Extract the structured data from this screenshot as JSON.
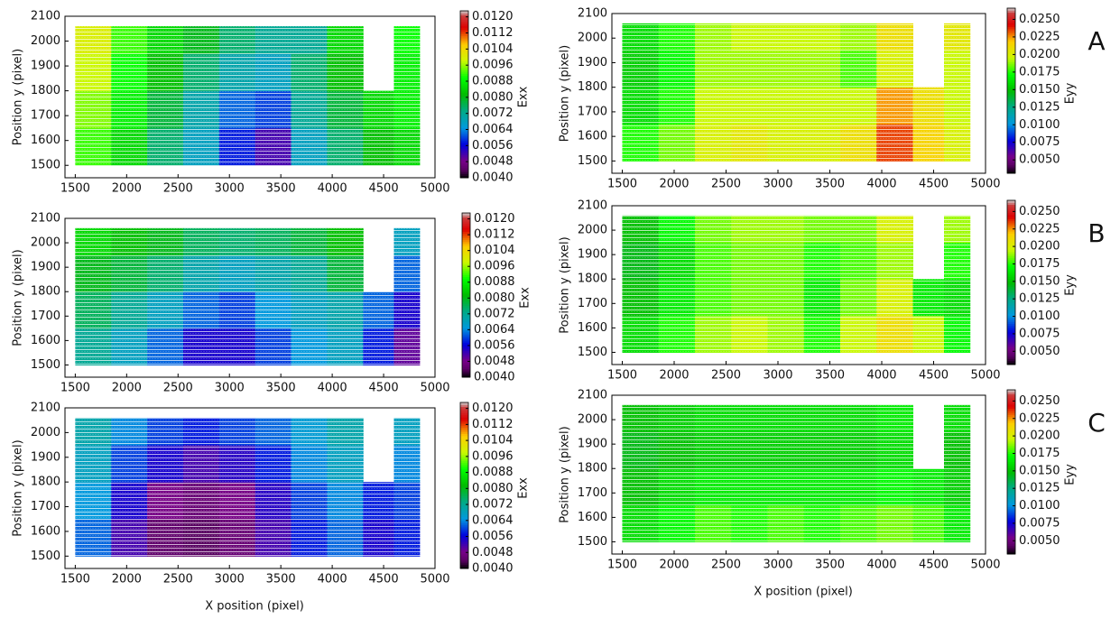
{
  "chart_data": [
    {
      "type": "heatmap",
      "ylabel": "Position y (pixel)",
      "colorbar_label": "Exx",
      "colormap": "nipy_spectral",
      "xlim": [
        1400,
        5000
      ],
      "ylim": [
        1450,
        2100
      ],
      "xticks": [
        1500,
        2000,
        2500,
        3000,
        3500,
        4000,
        4500,
        5000
      ],
      "yticks": [
        1500,
        1600,
        1700,
        1800,
        1900,
        2000,
        2100
      ],
      "xbins": [
        1500,
        1850,
        2200,
        2550,
        2900,
        3250,
        3600,
        3950,
        4300,
        4600,
        4850
      ],
      "ybins": [
        1500,
        1650,
        1800,
        1950,
        2060
      ],
      "values": [
        [
          0.0092,
          0.0085,
          0.0075,
          0.0068,
          0.0058,
          0.0052,
          0.0068,
          0.0075,
          0.0082,
          0.0085
        ],
        [
          0.0095,
          0.0088,
          0.0078,
          0.007,
          0.0062,
          0.006,
          0.0072,
          0.0078,
          0.0085,
          0.0088
        ],
        [
          0.0098,
          0.009,
          0.0082,
          0.0075,
          0.007,
          0.0068,
          0.0075,
          0.0082,
          null,
          0.0088
        ],
        [
          0.01,
          0.0092,
          0.0085,
          0.008,
          0.0075,
          0.0072,
          0.0072,
          0.0085,
          null,
          0.009
        ]
      ],
      "clim": [
        0.004,
        0.0123
      ],
      "cticks": [
        {
          "value": 0.004,
          "label": "0.0040"
        },
        0.0048,
        0.0056,
        0.0064,
        0.0072,
        {
          "value": 0.008,
          "label": "0.0080"
        },
        0.0088,
        0.0096,
        0.0104,
        0.0112,
        {
          "value": 0.012,
          "label": "0.0120"
        }
      ]
    },
    {
      "type": "heatmap",
      "ylabel": "Position y (pixel)",
      "colorbar_label": "Eyy",
      "colormap": "nipy_spectral",
      "panel_label": "A",
      "xlim": [
        1400,
        5000
      ],
      "ylim": [
        1450,
        2100
      ],
      "xticks": [
        1500,
        2000,
        2500,
        3000,
        3500,
        4000,
        4500,
        5000
      ],
      "yticks": [
        1500,
        1600,
        1700,
        1800,
        1900,
        2000,
        2100
      ],
      "xbins": [
        1500,
        1850,
        2200,
        2550,
        2900,
        3250,
        3600,
        3950,
        4300,
        4600,
        4850
      ],
      "ybins": [
        1500,
        1650,
        1800,
        1950,
        2060
      ],
      "values": [
        [
          0.0175,
          0.0185,
          0.02,
          0.0205,
          0.02,
          0.02,
          0.021,
          0.0235,
          0.0215,
          0.02
        ],
        [
          0.016,
          0.0175,
          0.0195,
          0.0195,
          0.0195,
          0.0195,
          0.0195,
          0.0225,
          0.021,
          0.0195
        ],
        [
          0.0155,
          0.017,
          0.019,
          0.019,
          0.019,
          0.019,
          0.018,
          0.02,
          null,
          0.0195
        ],
        [
          0.016,
          0.0175,
          0.019,
          0.0195,
          0.0195,
          0.0195,
          0.019,
          0.021,
          null,
          0.0205
        ]
      ],
      "clim": [
        0.0031,
        0.0266
      ],
      "cticks": [
        {
          "value": 0.005,
          "label": "0.0050"
        },
        0.0075,
        {
          "value": 0.01,
          "label": "0.0100"
        },
        0.0125,
        {
          "value": 0.015,
          "label": "0.0150"
        },
        0.0175,
        {
          "value": 0.02,
          "label": "0.0200"
        },
        0.0225,
        {
          "value": 0.025,
          "label": "0.0250"
        }
      ]
    },
    {
      "type": "heatmap",
      "ylabel": "Position y (pixel)",
      "colorbar_label": "Exx",
      "colormap": "nipy_spectral",
      "xlim": [
        1400,
        5000
      ],
      "ylim": [
        1450,
        2100
      ],
      "xticks": [
        1500,
        2000,
        2500,
        3000,
        3500,
        4000,
        4500,
        5000
      ],
      "yticks": [
        1500,
        1600,
        1700,
        1800,
        1900,
        2000,
        2100
      ],
      "xbins": [
        1500,
        1850,
        2200,
        2550,
        2900,
        3250,
        3600,
        3950,
        4300,
        4600,
        4850
      ],
      "ybins": [
        1500,
        1650,
        1800,
        1950,
        2060
      ],
      "values": [
        [
          0.0072,
          0.0068,
          0.0062,
          0.0055,
          0.0055,
          0.006,
          0.0065,
          0.0068,
          0.0058,
          0.005
        ],
        [
          0.0076,
          0.0072,
          0.0068,
          0.0062,
          0.006,
          0.0065,
          0.0068,
          0.007,
          0.0062,
          0.0055
        ],
        [
          0.008,
          0.0078,
          0.0075,
          0.007,
          0.0068,
          0.007,
          0.0072,
          0.0078,
          null,
          0.0062
        ],
        [
          0.0085,
          0.0082,
          0.008,
          0.0076,
          0.0075,
          0.0076,
          0.0078,
          0.0082,
          null,
          0.0068
        ]
      ],
      "clim": [
        0.004,
        0.0123
      ],
      "cticks": [
        {
          "value": 0.004,
          "label": "0.0040"
        },
        0.0048,
        0.0056,
        0.0064,
        0.0072,
        {
          "value": 0.008,
          "label": "0.0080"
        },
        0.0088,
        0.0096,
        0.0104,
        0.0112,
        {
          "value": 0.012,
          "label": "0.0120"
        }
      ]
    },
    {
      "type": "heatmap",
      "ylabel": "Position y (pixel)",
      "colorbar_label": "Eyy",
      "colormap": "nipy_spectral",
      "panel_label": "B",
      "xlim": [
        1400,
        5000
      ],
      "ylim": [
        1450,
        2100
      ],
      "xticks": [
        1500,
        2000,
        2500,
        3000,
        3500,
        4000,
        4500,
        5000
      ],
      "yticks": [
        1500,
        1600,
        1700,
        1800,
        1900,
        2000,
        2100
      ],
      "xbins": [
        1500,
        1850,
        2200,
        2550,
        2900,
        3250,
        3600,
        3950,
        4300,
        4600,
        4850
      ],
      "ybins": [
        1500,
        1650,
        1800,
        1950,
        2060
      ],
      "values": [
        [
          0.016,
          0.0175,
          0.019,
          0.0195,
          0.019,
          0.0175,
          0.0195,
          0.021,
          0.0195,
          0.017
        ],
        [
          0.015,
          0.0165,
          0.018,
          0.0185,
          0.0185,
          0.0165,
          0.0185,
          0.02,
          0.0165,
          0.016
        ],
        [
          0.0145,
          0.016,
          0.018,
          0.0185,
          0.0185,
          0.0175,
          0.018,
          0.019,
          null,
          0.0175
        ],
        [
          0.015,
          0.017,
          0.0185,
          0.019,
          0.019,
          0.0185,
          0.0185,
          0.02,
          null,
          0.019
        ]
      ],
      "clim": [
        0.0031,
        0.0266
      ],
      "cticks": [
        {
          "value": 0.005,
          "label": "0.0050"
        },
        0.0075,
        {
          "value": 0.01,
          "label": "0.0100"
        },
        0.0125,
        {
          "value": 0.015,
          "label": "0.0150"
        },
        0.0175,
        {
          "value": 0.02,
          "label": "0.0200"
        },
        0.0225,
        {
          "value": 0.025,
          "label": "0.0250"
        }
      ]
    },
    {
      "type": "heatmap",
      "ylabel": "Position y (pixel)",
      "xlabel": "X position (pixel)",
      "colorbar_label": "Exx",
      "colormap": "nipy_spectral",
      "xlim": [
        1400,
        5000
      ],
      "ylim": [
        1450,
        2100
      ],
      "xticks": [
        1500,
        2000,
        2500,
        3000,
        3500,
        4000,
        4500,
        5000
      ],
      "yticks": [
        1500,
        1600,
        1700,
        1800,
        1900,
        2000,
        2100
      ],
      "xbins": [
        1500,
        1850,
        2200,
        2550,
        2900,
        3250,
        3600,
        3950,
        4300,
        4600,
        4850
      ],
      "ybins": [
        1500,
        1650,
        1800,
        1950,
        2060
      ],
      "values": [
        [
          0.0062,
          0.0052,
          0.0045,
          0.0044,
          0.0046,
          0.0052,
          0.0058,
          0.0062,
          0.0055,
          0.0058
        ],
        [
          0.0065,
          0.0055,
          0.0048,
          0.0046,
          0.0048,
          0.0054,
          0.006,
          0.0064,
          0.0058,
          0.006
        ],
        [
          0.0068,
          0.006,
          0.0055,
          0.0052,
          0.0054,
          0.0058,
          0.0064,
          0.0068,
          null,
          0.0064
        ],
        [
          0.007,
          0.0064,
          0.006,
          0.0058,
          0.006,
          0.0062,
          0.0066,
          0.007,
          null,
          0.0068
        ]
      ],
      "clim": [
        0.004,
        0.0123
      ],
      "cticks": [
        {
          "value": 0.004,
          "label": "0.0040"
        },
        0.0048,
        0.0056,
        0.0064,
        0.0072,
        {
          "value": 0.008,
          "label": "0.0080"
        },
        0.0088,
        0.0096,
        0.0104,
        0.0112,
        {
          "value": 0.012,
          "label": "0.0120"
        }
      ]
    },
    {
      "type": "heatmap",
      "ylabel": "Position y (pixel)",
      "xlabel": "X position (pixel)",
      "colorbar_label": "Eyy",
      "colormap": "nipy_spectral",
      "panel_label": "C",
      "xlim": [
        1400,
        5000
      ],
      "ylim": [
        1450,
        2100
      ],
      "xticks": [
        1500,
        2000,
        2500,
        3000,
        3500,
        4000,
        4500,
        5000
      ],
      "yticks": [
        1500,
        1600,
        1700,
        1800,
        1900,
        2000,
        2100
      ],
      "xbins": [
        1500,
        1850,
        2200,
        2550,
        2900,
        3250,
        3600,
        3950,
        4300,
        4600,
        4850
      ],
      "ybins": [
        1500,
        1650,
        1800,
        1950,
        2060
      ],
      "values": [
        [
          0.016,
          0.017,
          0.018,
          0.0175,
          0.018,
          0.0175,
          0.018,
          0.0185,
          0.018,
          0.0165
        ],
        [
          0.015,
          0.016,
          0.0165,
          0.0165,
          0.0165,
          0.0165,
          0.0165,
          0.017,
          0.0165,
          0.0155
        ],
        [
          0.0145,
          0.015,
          0.0155,
          0.0155,
          0.0155,
          0.0155,
          0.0155,
          0.016,
          null,
          0.015
        ],
        [
          0.015,
          0.0155,
          0.016,
          0.016,
          0.016,
          0.016,
          0.016,
          0.0165,
          null,
          0.016
        ]
      ],
      "clim": [
        0.0031,
        0.0266
      ],
      "cticks": [
        {
          "value": 0.005,
          "label": "0.0050"
        },
        0.0075,
        {
          "value": 0.01,
          "label": "0.0100"
        },
        0.0125,
        {
          "value": 0.015,
          "label": "0.0150"
        },
        0.0175,
        {
          "value": 0.02,
          "label": "0.0200"
        },
        0.0225,
        {
          "value": 0.025,
          "label": "0.0250"
        }
      ]
    }
  ]
}
